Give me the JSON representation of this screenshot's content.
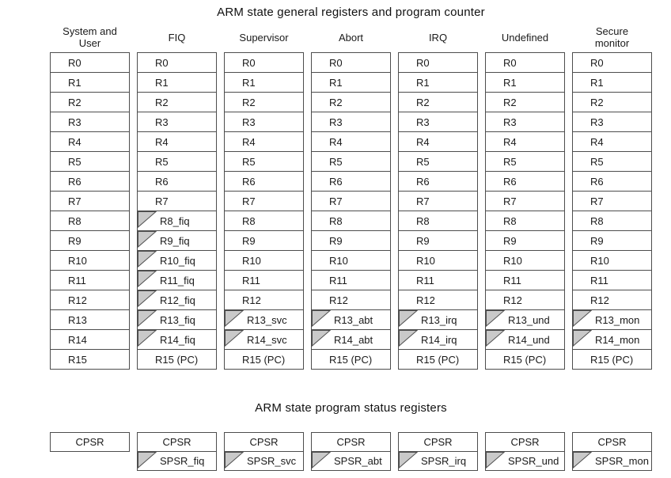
{
  "colors": {
    "border": "#4d4d4d",
    "banked_fill": "#c9c9c9",
    "background": "#ffffff"
  },
  "general": {
    "title": "ARM state general registers and program counter",
    "columns": [
      {
        "mode": "system-user",
        "header": "System and\nUser",
        "cells": [
          {
            "label": "R0"
          },
          {
            "label": "R1"
          },
          {
            "label": "R2"
          },
          {
            "label": "R3"
          },
          {
            "label": "R4"
          },
          {
            "label": "R5"
          },
          {
            "label": "R6"
          },
          {
            "label": "R7"
          },
          {
            "label": "R8"
          },
          {
            "label": "R9"
          },
          {
            "label": "R10"
          },
          {
            "label": "R11"
          },
          {
            "label": "R12"
          },
          {
            "label": "R13"
          },
          {
            "label": "R14"
          },
          {
            "label": "R15"
          }
        ]
      },
      {
        "mode": "fiq",
        "header": "FIQ",
        "cells": [
          {
            "label": "R0"
          },
          {
            "label": "R1"
          },
          {
            "label": "R2"
          },
          {
            "label": "R3"
          },
          {
            "label": "R4"
          },
          {
            "label": "R5"
          },
          {
            "label": "R6"
          },
          {
            "label": "R7"
          },
          {
            "label": "R8_fiq",
            "banked": true
          },
          {
            "label": "R9_fiq",
            "banked": true
          },
          {
            "label": "R10_fiq",
            "banked": true
          },
          {
            "label": "R11_fiq",
            "banked": true
          },
          {
            "label": "R12_fiq",
            "banked": true
          },
          {
            "label": "R13_fiq",
            "banked": true
          },
          {
            "label": "R14_fiq",
            "banked": true
          },
          {
            "label": "R15 (PC)"
          }
        ]
      },
      {
        "mode": "supervisor",
        "header": "Supervisor",
        "cells": [
          {
            "label": "R0"
          },
          {
            "label": "R1"
          },
          {
            "label": "R2"
          },
          {
            "label": "R3"
          },
          {
            "label": "R4"
          },
          {
            "label": "R5"
          },
          {
            "label": "R6"
          },
          {
            "label": "R7"
          },
          {
            "label": "R8"
          },
          {
            "label": "R9"
          },
          {
            "label": "R10"
          },
          {
            "label": "R11"
          },
          {
            "label": "R12"
          },
          {
            "label": "R13_svc",
            "banked": true
          },
          {
            "label": "R14_svc",
            "banked": true
          },
          {
            "label": "R15 (PC)"
          }
        ]
      },
      {
        "mode": "abort",
        "header": "Abort",
        "cells": [
          {
            "label": "R0"
          },
          {
            "label": "R1"
          },
          {
            "label": "R2"
          },
          {
            "label": "R3"
          },
          {
            "label": "R4"
          },
          {
            "label": "R5"
          },
          {
            "label": "R6"
          },
          {
            "label": "R7"
          },
          {
            "label": "R8"
          },
          {
            "label": "R9"
          },
          {
            "label": "R10"
          },
          {
            "label": "R11"
          },
          {
            "label": "R12"
          },
          {
            "label": "R13_abt",
            "banked": true
          },
          {
            "label": "R14_abt",
            "banked": true
          },
          {
            "label": "R15 (PC)"
          }
        ]
      },
      {
        "mode": "irq",
        "header": "IRQ",
        "cells": [
          {
            "label": "R0"
          },
          {
            "label": "R1"
          },
          {
            "label": "R2"
          },
          {
            "label": "R3"
          },
          {
            "label": "R4"
          },
          {
            "label": "R5"
          },
          {
            "label": "R6"
          },
          {
            "label": "R7"
          },
          {
            "label": "R8"
          },
          {
            "label": "R9"
          },
          {
            "label": "R10"
          },
          {
            "label": "R11"
          },
          {
            "label": "R12"
          },
          {
            "label": "R13_irq",
            "banked": true
          },
          {
            "label": "R14_irq",
            "banked": true
          },
          {
            "label": "R15 (PC)"
          }
        ]
      },
      {
        "mode": "undefined",
        "header": "Undefined",
        "cells": [
          {
            "label": "R0"
          },
          {
            "label": "R1"
          },
          {
            "label": "R2"
          },
          {
            "label": "R3"
          },
          {
            "label": "R4"
          },
          {
            "label": "R5"
          },
          {
            "label": "R6"
          },
          {
            "label": "R7"
          },
          {
            "label": "R8"
          },
          {
            "label": "R9"
          },
          {
            "label": "R10"
          },
          {
            "label": "R11"
          },
          {
            "label": "R12"
          },
          {
            "label": "R13_und",
            "banked": true
          },
          {
            "label": "R14_und",
            "banked": true
          },
          {
            "label": "R15 (PC)"
          }
        ]
      },
      {
        "mode": "secure-monitor",
        "header": "Secure\nmonitor",
        "cells": [
          {
            "label": "R0"
          },
          {
            "label": "R1"
          },
          {
            "label": "R2"
          },
          {
            "label": "R3"
          },
          {
            "label": "R4"
          },
          {
            "label": "R5"
          },
          {
            "label": "R6"
          },
          {
            "label": "R7"
          },
          {
            "label": "R8"
          },
          {
            "label": "R9"
          },
          {
            "label": "R10"
          },
          {
            "label": "R11"
          },
          {
            "label": "R12"
          },
          {
            "label": "R13_mon",
            "banked": true
          },
          {
            "label": "R14_mon",
            "banked": true
          },
          {
            "label": "R15 (PC)"
          }
        ]
      }
    ]
  },
  "status": {
    "title": "ARM state program status registers",
    "columns": [
      {
        "mode": "system-user",
        "cells": [
          {
            "label": "CPSR"
          }
        ]
      },
      {
        "mode": "fiq",
        "cells": [
          {
            "label": "CPSR"
          },
          {
            "label": "SPSR_fiq",
            "banked": true
          }
        ]
      },
      {
        "mode": "supervisor",
        "cells": [
          {
            "label": "CPSR"
          },
          {
            "label": "SPSR_svc",
            "banked": true
          }
        ]
      },
      {
        "mode": "abort",
        "cells": [
          {
            "label": "CPSR"
          },
          {
            "label": "SPSR_abt",
            "banked": true
          }
        ]
      },
      {
        "mode": "irq",
        "cells": [
          {
            "label": "CPSR"
          },
          {
            "label": "SPSR_irq",
            "banked": true
          }
        ]
      },
      {
        "mode": "undefined",
        "cells": [
          {
            "label": "CPSR"
          },
          {
            "label": "SPSR_und",
            "banked": true
          }
        ]
      },
      {
        "mode": "secure-monitor",
        "cells": [
          {
            "label": "CPSR"
          },
          {
            "label": "SPSR_mon",
            "banked": true
          }
        ]
      }
    ]
  }
}
